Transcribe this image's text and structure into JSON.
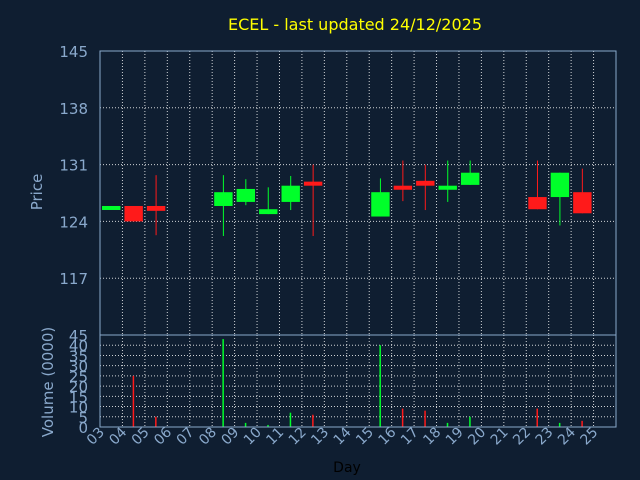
{
  "chart_data": [
    {
      "type": "candlestick",
      "title": "ECEL - last updated 24/12/2025",
      "ylabel": "Price",
      "ylim": [
        110,
        145
      ],
      "yticks": [
        145,
        138,
        131,
        124,
        117
      ],
      "grid": true,
      "candles": [
        {
          "day": 3,
          "open": 125.9,
          "close": 125.9,
          "high": 125.9,
          "low": 125.9
        },
        {
          "day": 4,
          "open": 125.9,
          "close": 124.0,
          "high": 125.9,
          "low": 124.0
        },
        {
          "day": 5,
          "open": 125.9,
          "close": 125.3,
          "high": 129.7,
          "low": 122.3
        },
        {
          "day": 8,
          "open": 125.9,
          "close": 127.6,
          "high": 129.7,
          "low": 122.2
        },
        {
          "day": 9,
          "open": 126.4,
          "close": 128.0,
          "high": 129.2,
          "low": 126.0
        },
        {
          "day": 10,
          "open": 124.9,
          "close": 125.5,
          "high": 128.2,
          "low": 124.9
        },
        {
          "day": 11,
          "open": 126.4,
          "close": 128.4,
          "high": 129.6,
          "low": 125.4
        },
        {
          "day": 12,
          "open": 128.9,
          "close": 128.4,
          "high": 131.0,
          "low": 122.2
        },
        {
          "day": 15,
          "open": 124.6,
          "close": 127.6,
          "high": 129.3,
          "low": 124.6
        },
        {
          "day": 16,
          "open": 128.4,
          "close": 127.9,
          "high": 131.5,
          "low": 126.5
        },
        {
          "day": 17,
          "open": 129.0,
          "close": 128.4,
          "high": 131.0,
          "low": 125.4
        },
        {
          "day": 18,
          "open": 127.9,
          "close": 128.4,
          "high": 131.5,
          "low": 126.4
        },
        {
          "day": 19,
          "open": 128.5,
          "close": 130.0,
          "high": 131.5,
          "low": 128.5
        },
        {
          "day": 22,
          "open": 127.0,
          "close": 125.5,
          "high": 131.5,
          "low": 125.5
        },
        {
          "day": 23,
          "open": 127.0,
          "close": 130.0,
          "high": 130.0,
          "low": 123.5
        },
        {
          "day": 24,
          "open": 127.6,
          "close": 125.0,
          "high": 130.5,
          "low": 125.0
        }
      ]
    },
    {
      "type": "bar",
      "ylabel": "Volume (0000)",
      "ylim": [
        0,
        45
      ],
      "yticks": [
        45,
        40,
        35,
        30,
        25,
        20,
        15,
        10,
        5,
        0
      ],
      "xlabel": "Day",
      "categories": [
        "03",
        "04",
        "05",
        "06",
        "07",
        "08",
        "09",
        "10",
        "11",
        "12",
        "13",
        "14",
        "15",
        "16",
        "17",
        "18",
        "19",
        "20",
        "21",
        "22",
        "23",
        "24",
        "25"
      ],
      "series": [
        {
          "values": [
            0,
            25,
            5,
            0,
            0,
            43,
            2,
            1,
            7,
            6,
            0,
            0,
            40,
            9,
            8,
            2,
            5,
            0,
            0,
            9,
            2,
            3,
            0
          ],
          "direction": [
            "",
            "down",
            "down",
            "",
            "",
            "up",
            "up",
            "up",
            "up",
            "down",
            "",
            "",
            "up",
            "down",
            "down",
            "up",
            "up",
            "",
            "",
            "down",
            "up",
            "down",
            ""
          ]
        }
      ]
    }
  ],
  "colors": {
    "background": "#0f1e31",
    "up": "#00ff2a",
    "down": "#ff1a1a",
    "axis": "#8aa9cc",
    "title": "#ffff00",
    "grid": "#ffffff"
  }
}
